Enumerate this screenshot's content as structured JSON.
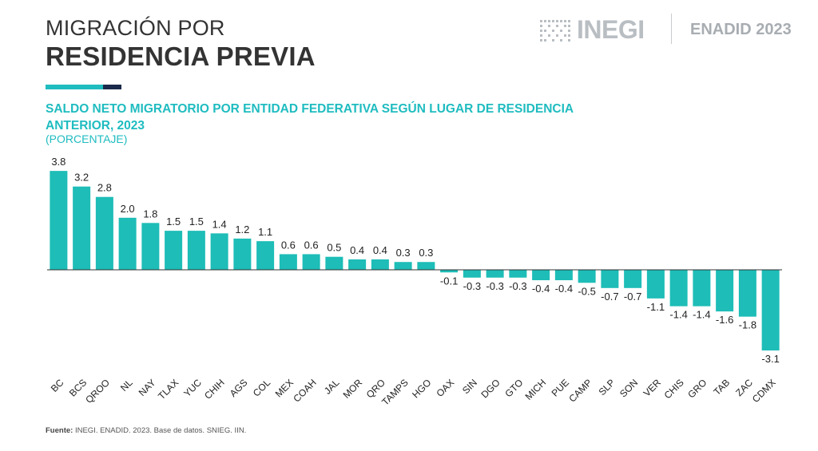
{
  "header": {
    "title_line1": "MIGRACIÓN POR",
    "title_line2": "RESIDENCIA PREVIA",
    "logo_text": "INEGI",
    "survey_label": "ENADID 2023"
  },
  "chart_data": {
    "type": "bar",
    "title": "SALDO NETO MIGRATORIO POR ENTIDAD FEDERATIVA SEGÚN LUGAR DE RESIDENCIA ANTERIOR, 2023",
    "unit": "(PORCENTAJE)",
    "categories": [
      "BC",
      "BCS",
      "QROO",
      "NL",
      "NAY",
      "TLAX",
      "YUC",
      "CHIH",
      "AGS",
      "COL",
      "MEX",
      "COAH",
      "JAL",
      "MOR",
      "QRO",
      "TAMPS",
      "HGO",
      "OAX",
      "SIN",
      "DGO",
      "GTO",
      "MICH",
      "PUE",
      "CAMP",
      "SLP",
      "SON",
      "VER",
      "CHIS",
      "GRO",
      "TAB",
      "ZAC",
      "CDMX"
    ],
    "values": [
      3.8,
      3.2,
      2.8,
      2.0,
      1.8,
      1.5,
      1.5,
      1.4,
      1.2,
      1.1,
      0.6,
      0.6,
      0.5,
      0.4,
      0.4,
      0.3,
      0.3,
      -0.1,
      -0.3,
      -0.3,
      -0.3,
      -0.4,
      -0.4,
      -0.5,
      -0.7,
      -0.7,
      -1.1,
      -1.4,
      -1.4,
      -1.6,
      -1.8,
      -3.1
    ],
    "value_labels": [
      "3.8",
      "3.2",
      "2.8",
      "2.0",
      "1.8",
      "1.5",
      "1.5",
      "1.4",
      "1.2",
      "1.1",
      "0.6",
      "0.6",
      "0.5",
      "0.4",
      "0.4",
      "0.3",
      "0.3",
      "-0.1",
      "-0.3",
      "-0.3",
      "-0.3",
      "-0.4",
      "-0.4",
      "-0.5",
      "-0.7",
      "-0.7",
      "-1.1",
      "-1.4",
      "-1.4",
      "-1.6",
      "-1.8",
      "-3.1"
    ],
    "ylim": [
      -3.1,
      3.8
    ],
    "grid": false,
    "legend": "none"
  },
  "source": {
    "label": "Fuente:",
    "text": "INEGI. ENADID. 2023. Base de datos. SNIEG. IIN."
  },
  "colors": {
    "bar": "#1ebdb7",
    "title_accent": "#1fbcc0",
    "navy": "#1b2a4a",
    "axis": "#333333"
  }
}
